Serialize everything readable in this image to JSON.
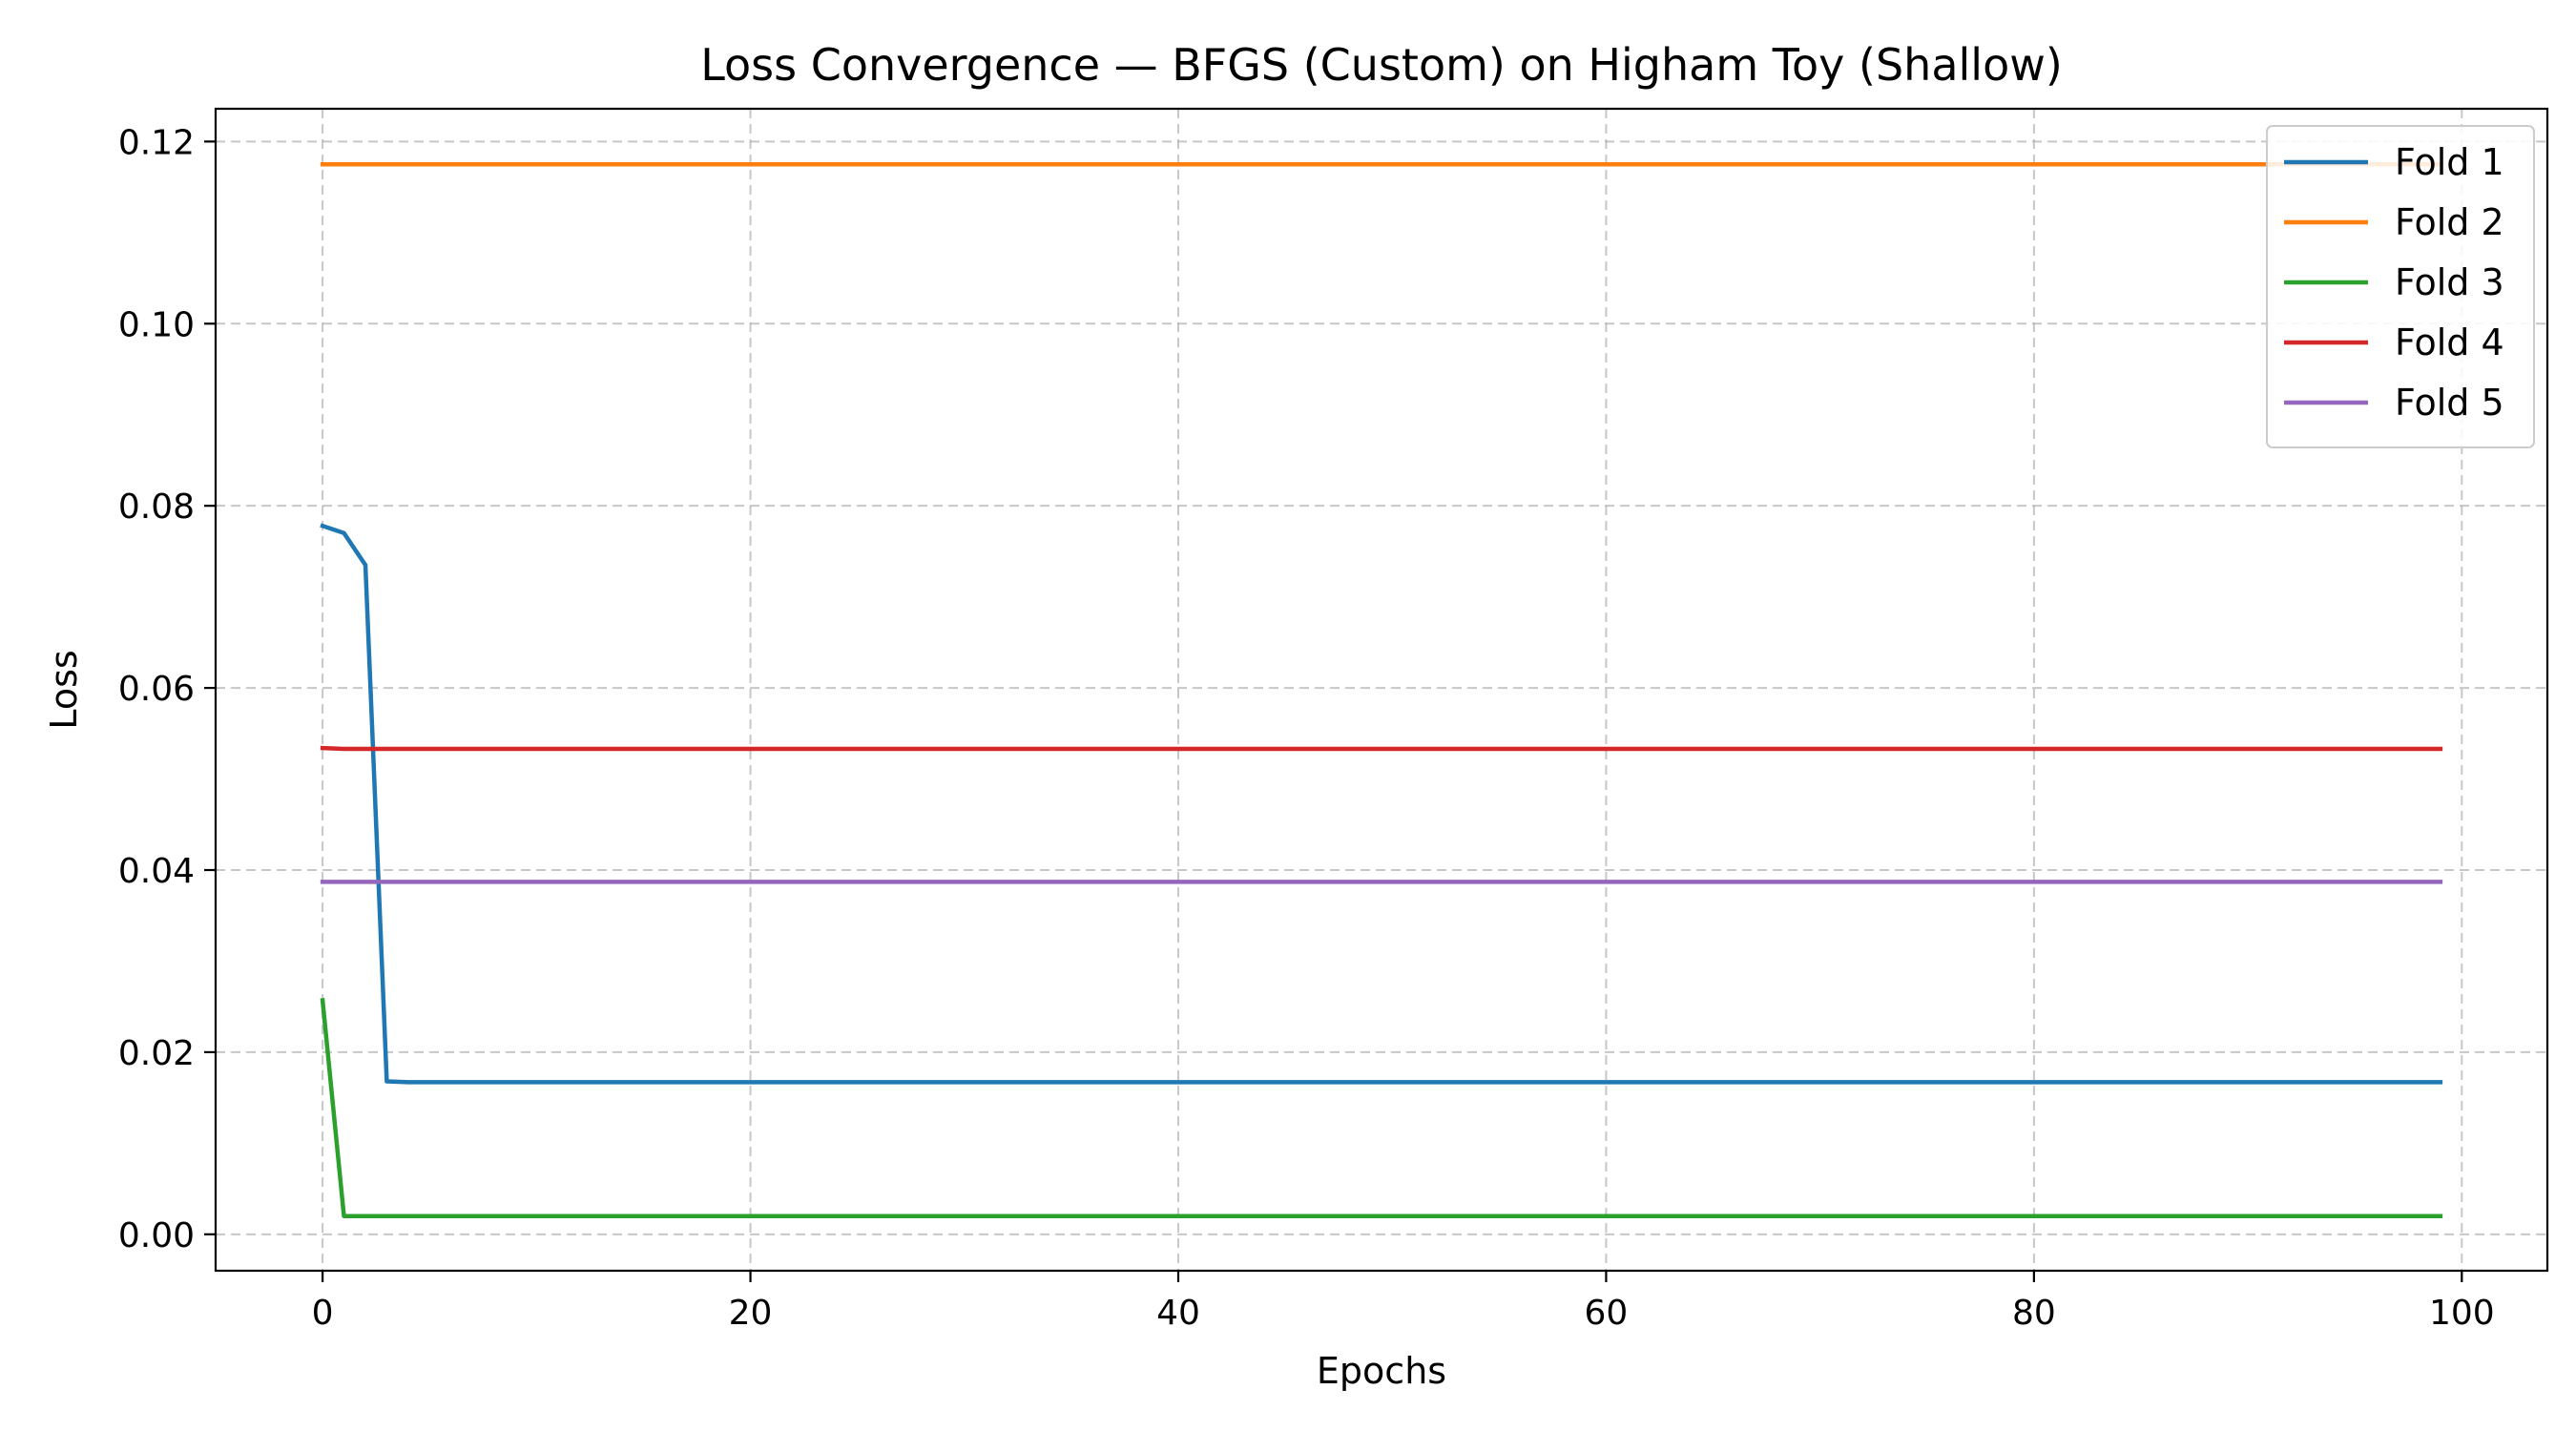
{
  "chart_data": {
    "type": "line",
    "title": "Loss Convergence — BFGS (Custom) on Higham Toy (Shallow)",
    "xlabel": "Epochs",
    "ylabel": "Loss",
    "xlim": [
      -5,
      104
    ],
    "ylim": [
      -0.004,
      0.1236
    ],
    "xticks": [
      0,
      20,
      40,
      60,
      80,
      100
    ],
    "xtick_labels": [
      "0",
      "20",
      "40",
      "60",
      "80",
      "100"
    ],
    "yticks": [
      0.0,
      0.02,
      0.04,
      0.06,
      0.08,
      0.1,
      0.12
    ],
    "ytick_labels": [
      "0.00",
      "0.02",
      "0.04",
      "0.06",
      "0.08",
      "0.10",
      "0.12"
    ],
    "grid": true,
    "legend_position": "top-right",
    "series": [
      {
        "name": "Fold 1",
        "color": "#1f77b4",
        "x": [
          0,
          1,
          2,
          3,
          4,
          99
        ],
        "y": [
          0.0778,
          0.077,
          0.0735,
          0.0168,
          0.0167,
          0.0167
        ]
      },
      {
        "name": "Fold 2",
        "color": "#ff7f0e",
        "x": [
          0,
          99
        ],
        "y": [
          0.1175,
          0.1175
        ]
      },
      {
        "name": "Fold 3",
        "color": "#2ca02c",
        "x": [
          0,
          1,
          2,
          99
        ],
        "y": [
          0.0257,
          0.002,
          0.002,
          0.002
        ]
      },
      {
        "name": "Fold 4",
        "color": "#d62728",
        "x": [
          0,
          1,
          99
        ],
        "y": [
          0.0534,
          0.0533,
          0.0533
        ]
      },
      {
        "name": "Fold 5",
        "color": "#9467bd",
        "x": [
          0,
          99
        ],
        "y": [
          0.0387,
          0.0387
        ]
      }
    ]
  }
}
